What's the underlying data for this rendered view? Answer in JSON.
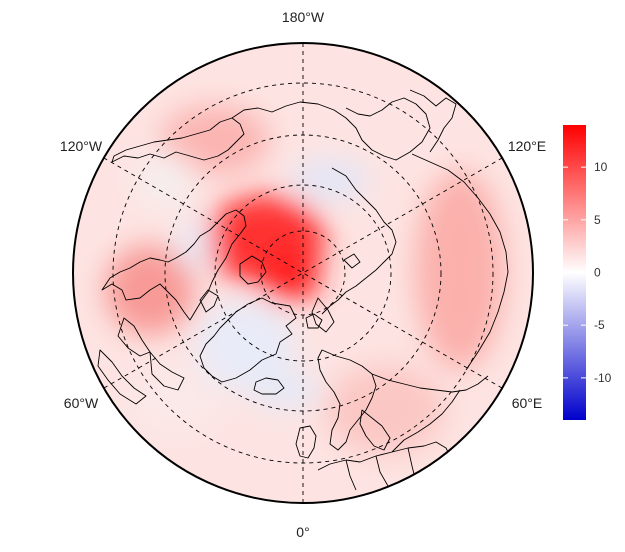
{
  "projection": "north-polar-stereographic",
  "longitude_labels": {
    "top": "180°W",
    "bottom": "0°",
    "upper_left": "120°W",
    "upper_right": "120°E",
    "lower_left": "60°W",
    "lower_right": "60°E"
  },
  "colorbar": {
    "range": [
      -14,
      14
    ],
    "ticks": [
      "10",
      "5",
      "0",
      "-5",
      "-10"
    ],
    "tick_values": [
      10,
      5,
      0,
      -5,
      -10
    ],
    "colors": {
      "low": "#0000cc",
      "mid": "#ffffff",
      "high": "#ff0000"
    }
  },
  "colors": {
    "background_field": "#fde6e4",
    "coastline": "#000000",
    "graticule": "#000000"
  }
}
